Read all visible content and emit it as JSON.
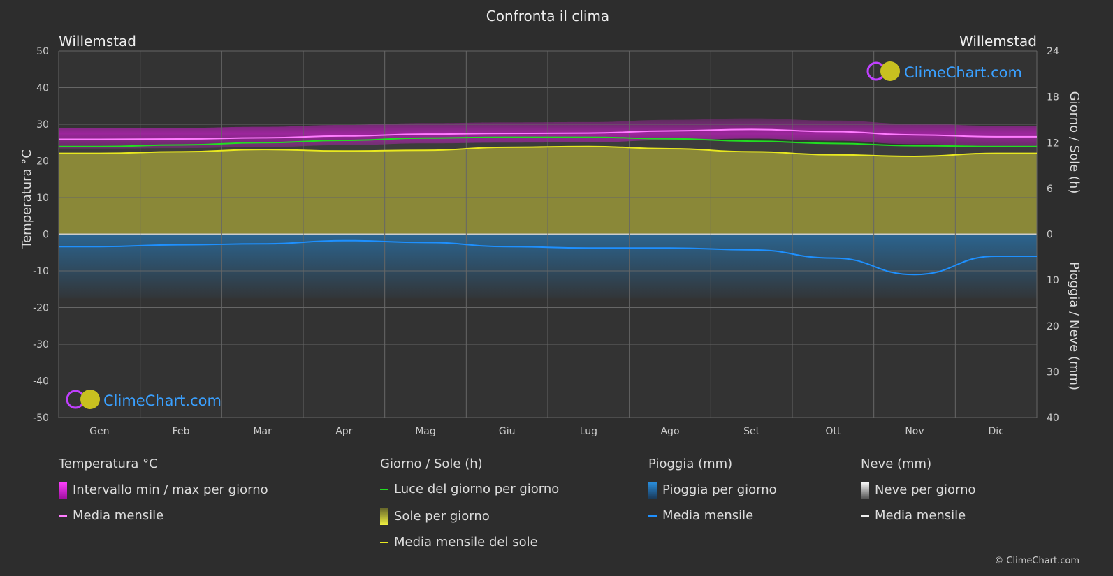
{
  "title": "Confronta il clima",
  "location_left": "Willemstad",
  "location_right": "Willemstad",
  "logo_text": "ClimeChart.com",
  "copyright": "© ClimeChart.com",
  "chart_data": {
    "type": "area",
    "title": "Confronta il clima",
    "categories": [
      "Gen",
      "Feb",
      "Mar",
      "Apr",
      "Mag",
      "Giu",
      "Lug",
      "Ago",
      "Set",
      "Ott",
      "Nov",
      "Dic"
    ],
    "y_left": {
      "label": "Temperatura °C",
      "range": [
        -50,
        50
      ],
      "ticks": [
        50,
        40,
        30,
        20,
        10,
        0,
        -10,
        -20,
        -30,
        -40,
        -50
      ]
    },
    "y_right_top": {
      "label": "Giorno / Sole (h)",
      "range": [
        0,
        24
      ],
      "ticks": [
        24,
        18,
        12,
        6,
        0
      ]
    },
    "y_right_bottom": {
      "label": "Pioggia / Neve (mm)",
      "range": [
        0,
        40
      ],
      "ticks": [
        0,
        10,
        20,
        30,
        40
      ]
    },
    "grid": true,
    "series": [
      {
        "name": "Media mensile",
        "group": "Temperatura °C",
        "unit": "°C",
        "color": "#ff7cff",
        "values": [
          25.9,
          26.0,
          26.3,
          26.8,
          27.3,
          27.5,
          27.6,
          28.2,
          28.6,
          28.0,
          27.1,
          26.6
        ]
      },
      {
        "name": "Luce del giorno per giorno",
        "group": "Giorno / Sole (h)",
        "unit": "h",
        "color": "#22dd22",
        "values": [
          11.5,
          11.7,
          12.0,
          12.3,
          12.6,
          12.7,
          12.7,
          12.5,
          12.2,
          11.9,
          11.6,
          11.5
        ]
      },
      {
        "name": "Media mensile del sole",
        "group": "Giorno / Sole (h)",
        "unit": "h",
        "color": "#e8e820",
        "values": [
          10.6,
          10.8,
          11.1,
          10.9,
          11.0,
          11.4,
          11.5,
          11.2,
          10.8,
          10.4,
          10.2,
          10.6
        ]
      },
      {
        "name": "Media mensile",
        "group": "Pioggia (mm)",
        "unit": "mm",
        "color": "#1e90ff",
        "values": [
          2.7,
          2.3,
          2.1,
          1.4,
          1.8,
          2.7,
          3.0,
          3.0,
          3.4,
          5.2,
          8.8,
          4.8
        ]
      }
    ]
  },
  "legend": {
    "groups": [
      {
        "title": "Temperatura °C",
        "items": [
          {
            "label": "Intervallo min / max per giorno",
            "swatch": "magenta-box"
          },
          {
            "label": "Media mensile",
            "swatch": "pink-line"
          }
        ]
      },
      {
        "title": "Giorno / Sole (h)",
        "items": [
          {
            "label": "Luce del giorno per giorno",
            "swatch": "green-line"
          },
          {
            "label": "Sole per giorno",
            "swatch": "yellow-box"
          },
          {
            "label": "Media mensile del sole",
            "swatch": "yellow-line"
          }
        ]
      },
      {
        "title": "Pioggia (mm)",
        "items": [
          {
            "label": "Pioggia per giorno",
            "swatch": "blue-box"
          },
          {
            "label": "Media mensile",
            "swatch": "blue-line"
          }
        ]
      },
      {
        "title": "Neve (mm)",
        "items": [
          {
            "label": "Neve per giorno",
            "swatch": "white-box"
          },
          {
            "label": "Media mensile",
            "swatch": "white-line"
          }
        ]
      }
    ]
  }
}
